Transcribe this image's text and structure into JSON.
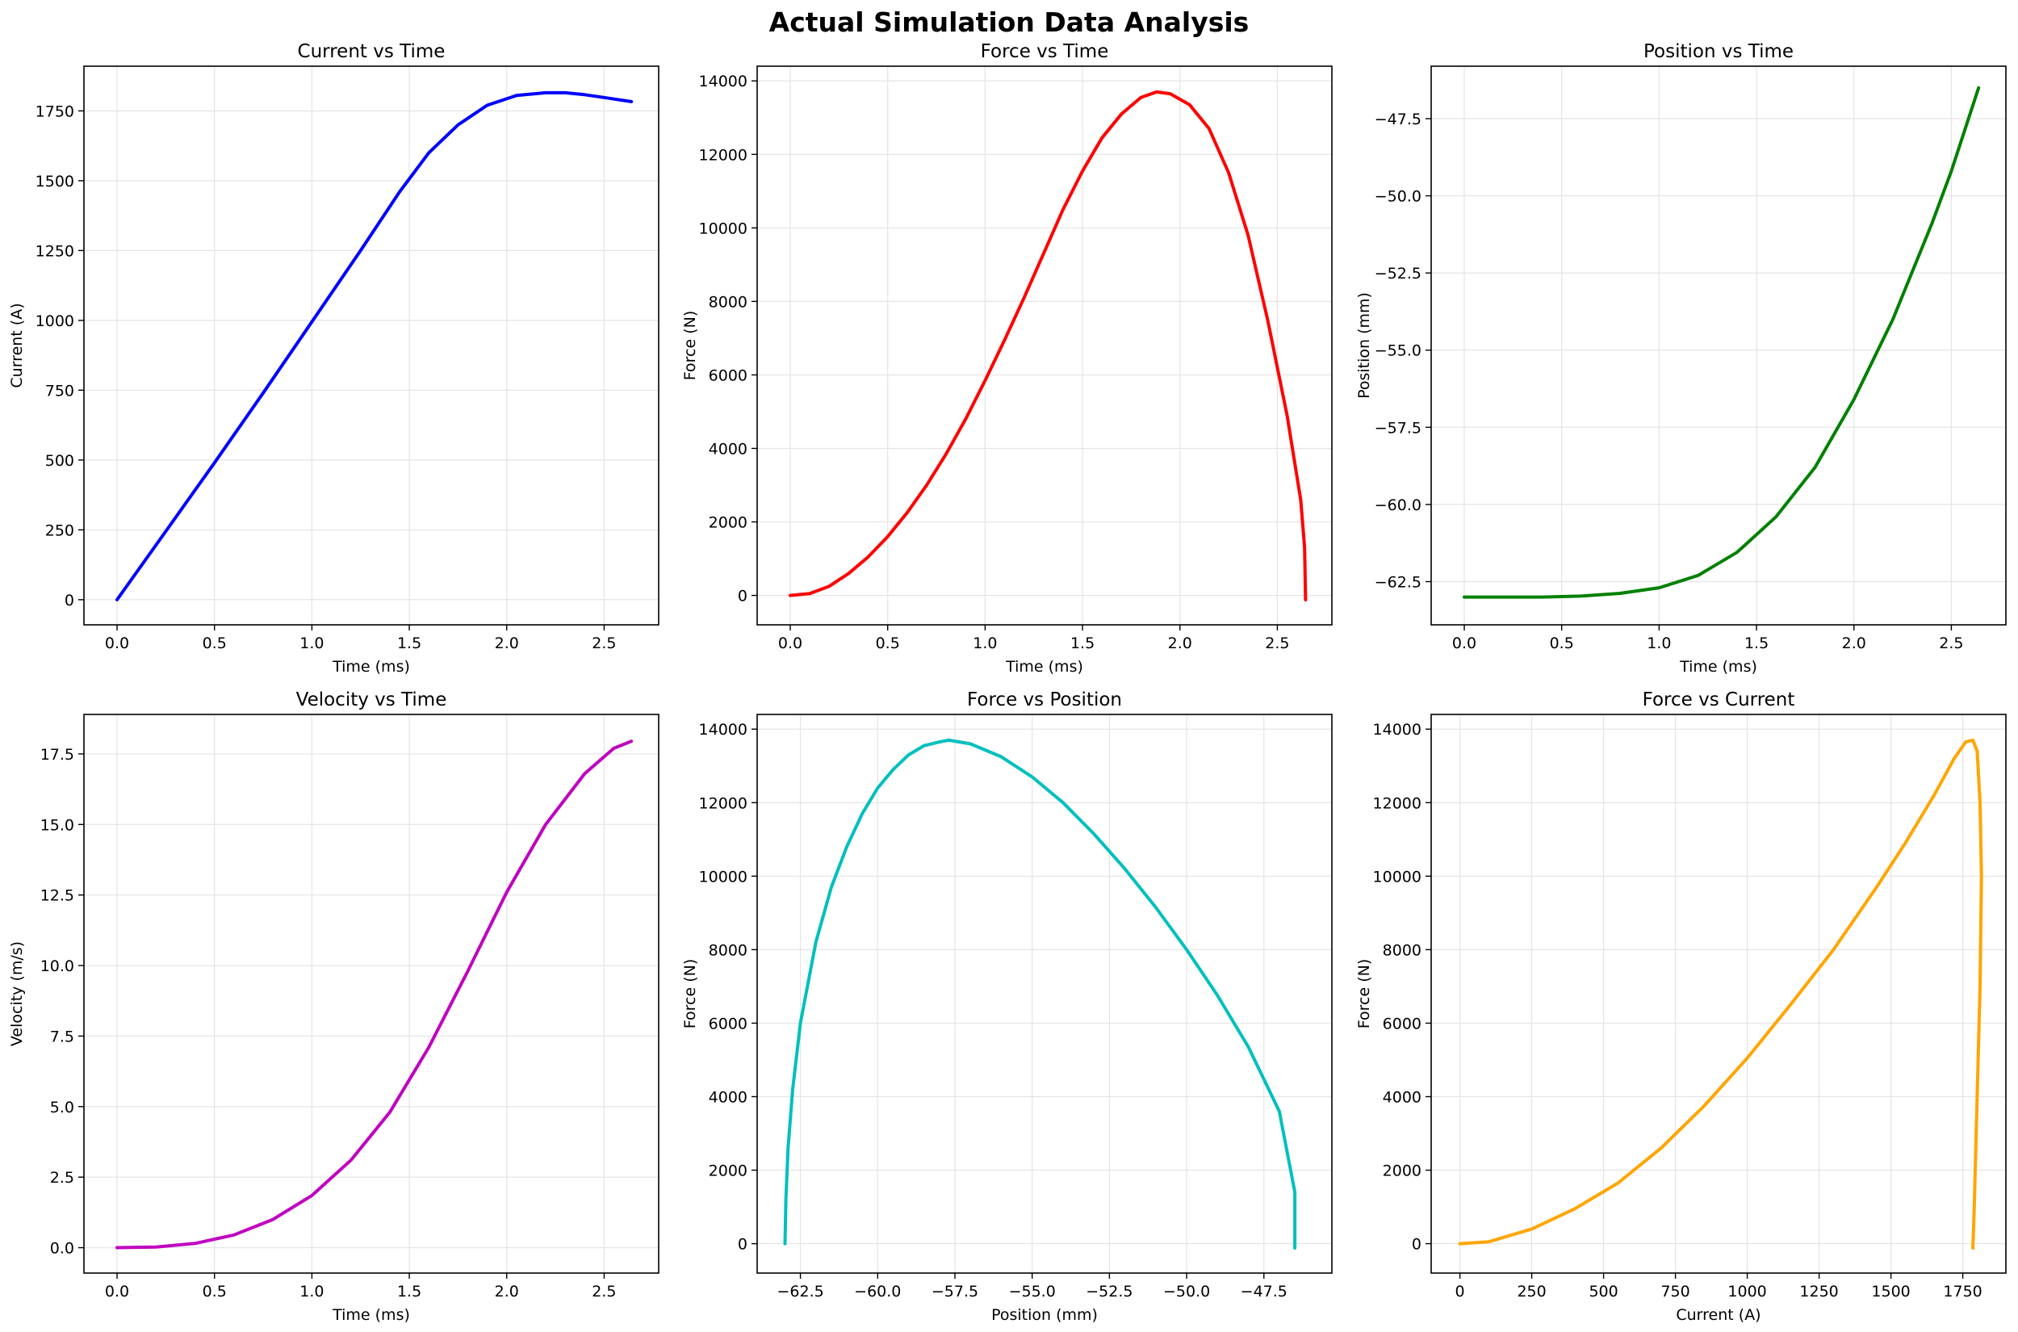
{
  "figure": {
    "suptitle": "Actual Simulation Data Analysis"
  },
  "chart_data": [
    {
      "type": "line",
      "title": "Current vs Time",
      "xlabel": "Time (ms)",
      "ylabel": "Current (A)",
      "xlim": [
        -0.17,
        2.78
      ],
      "ylim": [
        -90,
        1910
      ],
      "grid": true,
      "color": "#0000ff",
      "xticks": [
        0,
        0.5,
        1,
        1.5,
        2,
        2.5
      ],
      "xtick_labels": [
        "0.0",
        "0.5",
        "1.0",
        "1.5",
        "2.0",
        "2.5"
      ],
      "yticks": [
        0,
        250,
        500,
        750,
        1000,
        1250,
        1500,
        1750
      ],
      "ytick_labels": [
        "0",
        "250",
        "500",
        "750",
        "1000",
        "1250",
        "1500",
        "1750"
      ],
      "series": [
        {
          "name": "Current",
          "x": [
            0,
            0.25,
            0.5,
            0.75,
            1.0,
            1.25,
            1.45,
            1.6,
            1.75,
            1.9,
            2.05,
            2.2,
            2.3,
            2.4,
            2.5,
            2.64
          ],
          "y": [
            0,
            245,
            490,
            740,
            995,
            1250,
            1460,
            1600,
            1700,
            1770,
            1805,
            1815,
            1815,
            1808,
            1798,
            1783
          ]
        }
      ]
    },
    {
      "type": "line",
      "title": "Force vs Time",
      "xlabel": "Time (ms)",
      "ylabel": "Force (N)",
      "xlim": [
        -0.17,
        2.78
      ],
      "ylim": [
        -800,
        14400
      ],
      "grid": true,
      "color": "#ff0000",
      "xticks": [
        0,
        0.5,
        1,
        1.5,
        2,
        2.5
      ],
      "xtick_labels": [
        "0.0",
        "0.5",
        "1.0",
        "1.5",
        "2.0",
        "2.5"
      ],
      "yticks": [
        0,
        2000,
        4000,
        6000,
        8000,
        10000,
        12000,
        14000
      ],
      "ytick_labels": [
        "0",
        "2000",
        "4000",
        "6000",
        "8000",
        "10000",
        "12000",
        "14000"
      ],
      "series": [
        {
          "name": "Force",
          "x": [
            0,
            0.1,
            0.2,
            0.3,
            0.4,
            0.5,
            0.6,
            0.7,
            0.8,
            0.9,
            1.0,
            1.1,
            1.2,
            1.3,
            1.4,
            1.5,
            1.6,
            1.7,
            1.8,
            1.88,
            1.95,
            2.05,
            2.15,
            2.25,
            2.35,
            2.45,
            2.55,
            2.62,
            2.64,
            2.645
          ],
          "y": [
            0,
            50,
            250,
            600,
            1050,
            1600,
            2250,
            3000,
            3850,
            4800,
            5850,
            6950,
            8100,
            9300,
            10500,
            11550,
            12450,
            13100,
            13550,
            13700,
            13650,
            13350,
            12700,
            11500,
            9800,
            7500,
            4900,
            2600,
            1300,
            -120
          ]
        }
      ]
    },
    {
      "type": "line",
      "title": "Position vs Time",
      "xlabel": "Time (ms)",
      "ylabel": "Position (mm)",
      "xlim": [
        -0.17,
        2.78
      ],
      "ylim": [
        -63.9,
        -45.8
      ],
      "grid": true,
      "color": "#008000",
      "xticks": [
        0,
        0.5,
        1,
        1.5,
        2,
        2.5
      ],
      "xtick_labels": [
        "0.0",
        "0.5",
        "1.0",
        "1.5",
        "2.0",
        "2.5"
      ],
      "yticks": [
        -62.5,
        -60,
        -57.5,
        -55,
        -52.5,
        -50,
        -47.5
      ],
      "ytick_labels": [
        "−62.5",
        "−60.0",
        "−57.5",
        "−55.0",
        "−52.5",
        "−50.0",
        "−47.5"
      ],
      "series": [
        {
          "name": "Position",
          "x": [
            0,
            0.2,
            0.4,
            0.6,
            0.8,
            1.0,
            1.2,
            1.4,
            1.6,
            1.8,
            2.0,
            2.2,
            2.4,
            2.5,
            2.64
          ],
          "y": [
            -63.0,
            -63.0,
            -63.0,
            -62.97,
            -62.88,
            -62.7,
            -62.3,
            -61.55,
            -60.4,
            -58.8,
            -56.6,
            -54.0,
            -50.9,
            -49.2,
            -46.5
          ]
        }
      ]
    },
    {
      "type": "line",
      "title": "Velocity vs Time",
      "xlabel": "Time (ms)",
      "ylabel": "Velocity (m/s)",
      "xlim": [
        -0.17,
        2.78
      ],
      "ylim": [
        -0.9,
        18.9
      ],
      "grid": true,
      "color": "#c000c0",
      "xticks": [
        0,
        0.5,
        1,
        1.5,
        2,
        2.5
      ],
      "xtick_labels": [
        "0.0",
        "0.5",
        "1.0",
        "1.5",
        "2.0",
        "2.5"
      ],
      "yticks": [
        0,
        2.5,
        5,
        7.5,
        10,
        12.5,
        15,
        17.5
      ],
      "ytick_labels": [
        "0.0",
        "2.5",
        "5.0",
        "7.5",
        "10.0",
        "12.5",
        "15.0",
        "17.5"
      ],
      "series": [
        {
          "name": "Velocity",
          "x": [
            0,
            0.2,
            0.4,
            0.6,
            0.8,
            1.0,
            1.2,
            1.4,
            1.6,
            1.8,
            2.0,
            2.2,
            2.4,
            2.55,
            2.64
          ],
          "y": [
            0,
            0.02,
            0.15,
            0.45,
            1.0,
            1.85,
            3.1,
            4.8,
            7.1,
            9.8,
            12.6,
            15.0,
            16.8,
            17.7,
            17.95
          ]
        }
      ]
    },
    {
      "type": "line",
      "title": "Force vs Position",
      "xlabel": "Position (mm)",
      "ylabel": "Force (N)",
      "xlim": [
        -63.9,
        -45.3
      ],
      "ylim": [
        -800,
        14400
      ],
      "grid": true,
      "color": "#00bfbf",
      "xticks": [
        -62.5,
        -60,
        -57.5,
        -55,
        -52.5,
        -50,
        -47.5
      ],
      "xtick_labels": [
        "−62.5",
        "−60.0",
        "−57.5",
        "−55.0",
        "−52.5",
        "−50.0",
        "−47.5"
      ],
      "yticks": [
        0,
        2000,
        4000,
        6000,
        8000,
        10000,
        12000,
        14000
      ],
      "ytick_labels": [
        "0",
        "2000",
        "4000",
        "6000",
        "8000",
        "10000",
        "12000",
        "14000"
      ],
      "series": [
        {
          "name": "Force",
          "x": [
            -63.0,
            -62.97,
            -62.9,
            -62.75,
            -62.5,
            -62.0,
            -61.5,
            -61.0,
            -60.5,
            -60.0,
            -59.5,
            -59.0,
            -58.5,
            -58.0,
            -57.7,
            -57.0,
            -56.0,
            -55.0,
            -54.0,
            -53.0,
            -52.0,
            -51.0,
            -50.0,
            -49.0,
            -48.0,
            -47.0,
            -46.5,
            -46.5
          ],
          "y": [
            0,
            1200,
            2600,
            4200,
            6000,
            8200,
            9700,
            10800,
            11700,
            12400,
            12900,
            13300,
            13550,
            13650,
            13700,
            13600,
            13250,
            12700,
            12000,
            11150,
            10200,
            9150,
            8000,
            6750,
            5350,
            3600,
            1400,
            -120
          ]
        }
      ]
    },
    {
      "type": "line",
      "title": "Force vs Current",
      "xlabel": "Current (A)",
      "ylabel": "Force (N)",
      "xlim": [
        -100,
        1900
      ],
      "ylim": [
        -800,
        14400
      ],
      "grid": true,
      "color": "#ffa500",
      "xticks": [
        0,
        250,
        500,
        750,
        1000,
        1250,
        1500,
        1750
      ],
      "xtick_labels": [
        "0",
        "250",
        "500",
        "750",
        "1000",
        "1250",
        "1500",
        "1750"
      ],
      "yticks": [
        0,
        2000,
        4000,
        6000,
        8000,
        10000,
        12000,
        14000
      ],
      "ytick_labels": [
        "0",
        "2000",
        "4000",
        "6000",
        "8000",
        "10000",
        "12000",
        "14000"
      ],
      "series": [
        {
          "name": "Force",
          "x": [
            0,
            100,
            250,
            400,
            550,
            700,
            850,
            1000,
            1150,
            1300,
            1450,
            1550,
            1650,
            1720,
            1760,
            1785,
            1800,
            1810,
            1815,
            1810,
            1800,
            1790,
            1785
          ],
          "y": [
            0,
            50,
            400,
            950,
            1650,
            2600,
            3750,
            5050,
            6500,
            8000,
            9700,
            10900,
            12200,
            13200,
            13650,
            13700,
            13400,
            12000,
            10000,
            7000,
            4000,
            1000,
            -120
          ]
        }
      ]
    }
  ]
}
